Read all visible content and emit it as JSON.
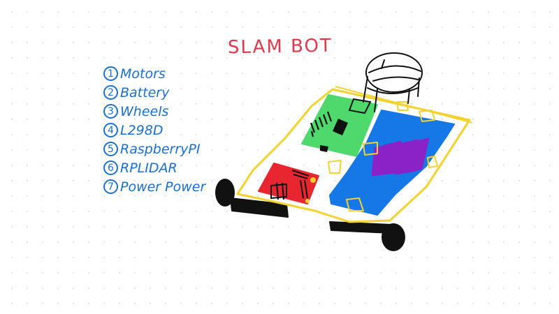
{
  "title": "SLAM BOT",
  "parts": [
    {
      "num": "1",
      "label": "Motors"
    },
    {
      "num": "2",
      "label": "Battery"
    },
    {
      "num": "3",
      "label": "Wheels"
    },
    {
      "num": "4",
      "label": "L298D"
    },
    {
      "num": "5",
      "label": "RaspberryPI"
    },
    {
      "num": "6",
      "label": "RPLIDAR"
    },
    {
      "num": "7",
      "label": "Power Power"
    }
  ],
  "colors": {
    "title": "#e0394d",
    "list": "#1a6fd1",
    "chassis": "#f2d22e",
    "green_board": "#4fd86b",
    "red_board": "#e8262f",
    "battery": "#1677e6",
    "battery_cells": "#8a22c8",
    "ink": "#111111"
  }
}
